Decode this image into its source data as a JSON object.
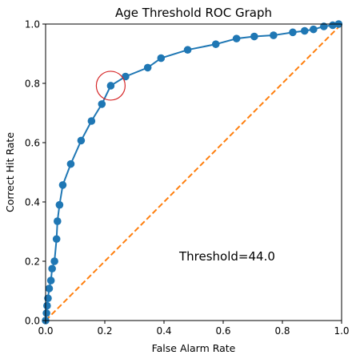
{
  "chart_data": {
    "type": "line",
    "title": "Age Threshold ROC Graph",
    "xlabel": "False Alarm Rate",
    "ylabel": "Correct Hit Rate",
    "xlim": [
      0,
      1
    ],
    "ylim": [
      0,
      1
    ],
    "xticks": [
      "0.0",
      "0.2",
      "0.4",
      "0.6",
      "0.8",
      "1.0"
    ],
    "yticks": [
      "0.0",
      "0.2",
      "0.4",
      "0.6",
      "0.8",
      "1.0"
    ],
    "grid": false,
    "annotation": "Threshold=44.0",
    "series": [
      {
        "color": "#1f77b4",
        "style": "solid",
        "markers": true,
        "x": [
          0.0,
          0.003,
          0.005,
          0.008,
          0.012,
          0.018,
          0.022,
          0.03,
          0.037,
          0.04,
          0.047,
          0.058,
          0.085,
          0.12,
          0.155,
          0.19,
          0.22,
          0.27,
          0.345,
          0.39,
          0.48,
          0.575,
          0.645,
          0.705,
          0.77,
          0.835,
          0.875,
          0.905,
          0.94,
          0.97,
          0.99
        ],
        "y": [
          0.0,
          0.025,
          0.05,
          0.075,
          0.108,
          0.135,
          0.175,
          0.2,
          0.275,
          0.335,
          0.39,
          0.457,
          0.528,
          0.607,
          0.673,
          0.73,
          0.792,
          0.823,
          0.853,
          0.885,
          0.913,
          0.932,
          0.951,
          0.958,
          0.962,
          0.972,
          0.977,
          0.982,
          0.992,
          0.996,
          1.0
        ]
      },
      {
        "color": "#ff7f0e",
        "style": "dashed",
        "markers": false,
        "x": [
          0,
          1
        ],
        "y": [
          0,
          1
        ]
      }
    ],
    "highlight": {
      "x": 0.22,
      "y": 0.792,
      "color": "#d62728"
    }
  }
}
